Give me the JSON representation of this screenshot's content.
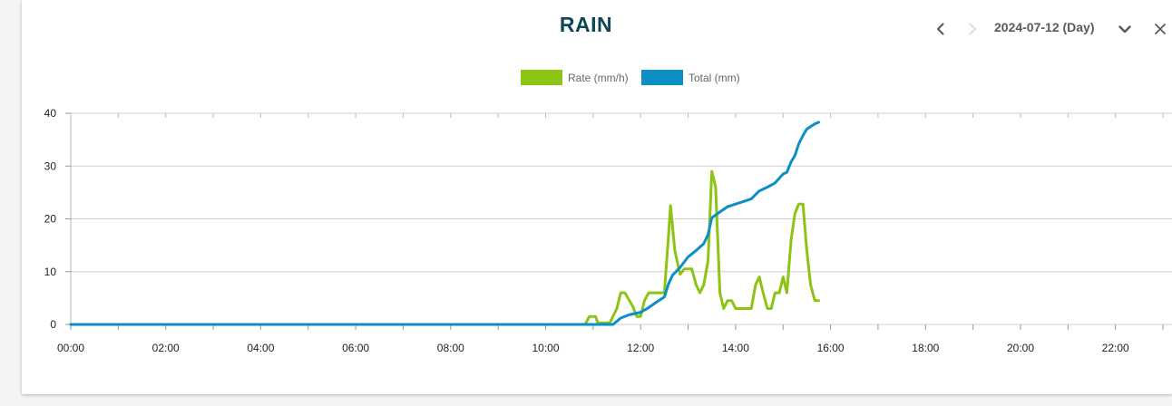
{
  "header": {
    "title": "RAIN",
    "date_label": "2024-07-12 (Day)",
    "prev_icon": "chevron-left-icon",
    "next_icon": "chevron-right-icon",
    "dropdown_icon": "chevron-down-icon",
    "close_icon": "close-icon"
  },
  "colors": {
    "rate": "#8cc414",
    "total": "#0b8fc4",
    "title": "#0d4654",
    "grid": "#d0d0d0"
  },
  "chart_data": {
    "type": "line",
    "title": "RAIN",
    "xlabel": "",
    "ylabel": "",
    "x_ticks": [
      "00:00",
      "02:00",
      "04:00",
      "06:00",
      "08:00",
      "10:00",
      "12:00",
      "14:00",
      "16:00",
      "18:00",
      "20:00",
      "22:00"
    ],
    "y_ticks": [
      0,
      10,
      20,
      30,
      40
    ],
    "xlim": [
      0,
      23.5
    ],
    "ylim": [
      0,
      40
    ],
    "legend": {
      "placement": "top-center",
      "entries": [
        "Rate (mm/h)",
        "Total (mm)"
      ]
    },
    "grid": true,
    "series": [
      {
        "name": "Rate (mm/h)",
        "points": [
          [
            0,
            0
          ],
          [
            10.83,
            0
          ],
          [
            10.92,
            1.5
          ],
          [
            11.05,
            1.5
          ],
          [
            11.1,
            0.3
          ],
          [
            11.35,
            0.3
          ],
          [
            11.5,
            3
          ],
          [
            11.58,
            6
          ],
          [
            11.67,
            6
          ],
          [
            11.83,
            3.5
          ],
          [
            11.92,
            1.5
          ],
          [
            12.0,
            1.5
          ],
          [
            12.08,
            4.5
          ],
          [
            12.17,
            6
          ],
          [
            12.42,
            6
          ],
          [
            12.5,
            6
          ],
          [
            12.58,
            16
          ],
          [
            12.63,
            22.5
          ],
          [
            12.72,
            14
          ],
          [
            12.83,
            9.5
          ],
          [
            12.92,
            10.5
          ],
          [
            13.08,
            10.5
          ],
          [
            13.17,
            7.5
          ],
          [
            13.25,
            6
          ],
          [
            13.33,
            7.5
          ],
          [
            13.42,
            12
          ],
          [
            13.5,
            29
          ],
          [
            13.58,
            26
          ],
          [
            13.67,
            6
          ],
          [
            13.75,
            3
          ],
          [
            13.83,
            4.5
          ],
          [
            13.92,
            4.5
          ],
          [
            14.0,
            3
          ],
          [
            14.33,
            3
          ],
          [
            14.42,
            7.5
          ],
          [
            14.5,
            9
          ],
          [
            14.58,
            6
          ],
          [
            14.67,
            3
          ],
          [
            14.75,
            3
          ],
          [
            14.83,
            6
          ],
          [
            14.92,
            6
          ],
          [
            15.0,
            9
          ],
          [
            15.08,
            6
          ],
          [
            15.17,
            16
          ],
          [
            15.25,
            21
          ],
          [
            15.33,
            22.8
          ],
          [
            15.42,
            22.8
          ],
          [
            15.5,
            14
          ],
          [
            15.58,
            7.5
          ],
          [
            15.67,
            4.5
          ],
          [
            15.75,
            4.5
          ]
        ]
      },
      {
        "name": "Total (mm)",
        "points": [
          [
            0,
            0
          ],
          [
            11.42,
            0
          ],
          [
            11.58,
            1.2
          ],
          [
            11.75,
            1.8
          ],
          [
            12.0,
            2.3
          ],
          [
            12.17,
            3.2
          ],
          [
            12.33,
            4.2
          ],
          [
            12.5,
            5.2
          ],
          [
            12.58,
            7.5
          ],
          [
            12.67,
            9.3
          ],
          [
            12.83,
            10.8
          ],
          [
            13.0,
            12.8
          ],
          [
            13.17,
            14.0
          ],
          [
            13.33,
            15.3
          ],
          [
            13.42,
            17.0
          ],
          [
            13.5,
            20.2
          ],
          [
            13.67,
            21.3
          ],
          [
            13.83,
            22.3
          ],
          [
            14.0,
            22.8
          ],
          [
            14.17,
            23.3
          ],
          [
            14.33,
            23.8
          ],
          [
            14.5,
            25.3
          ],
          [
            14.67,
            26.0
          ],
          [
            14.83,
            26.8
          ],
          [
            15.0,
            28.5
          ],
          [
            15.08,
            28.8
          ],
          [
            15.17,
            30.8
          ],
          [
            15.25,
            32.0
          ],
          [
            15.33,
            34.2
          ],
          [
            15.42,
            35.8
          ],
          [
            15.5,
            37.0
          ],
          [
            15.58,
            37.5
          ],
          [
            15.67,
            38.0
          ],
          [
            15.75,
            38.3
          ]
        ]
      }
    ]
  }
}
